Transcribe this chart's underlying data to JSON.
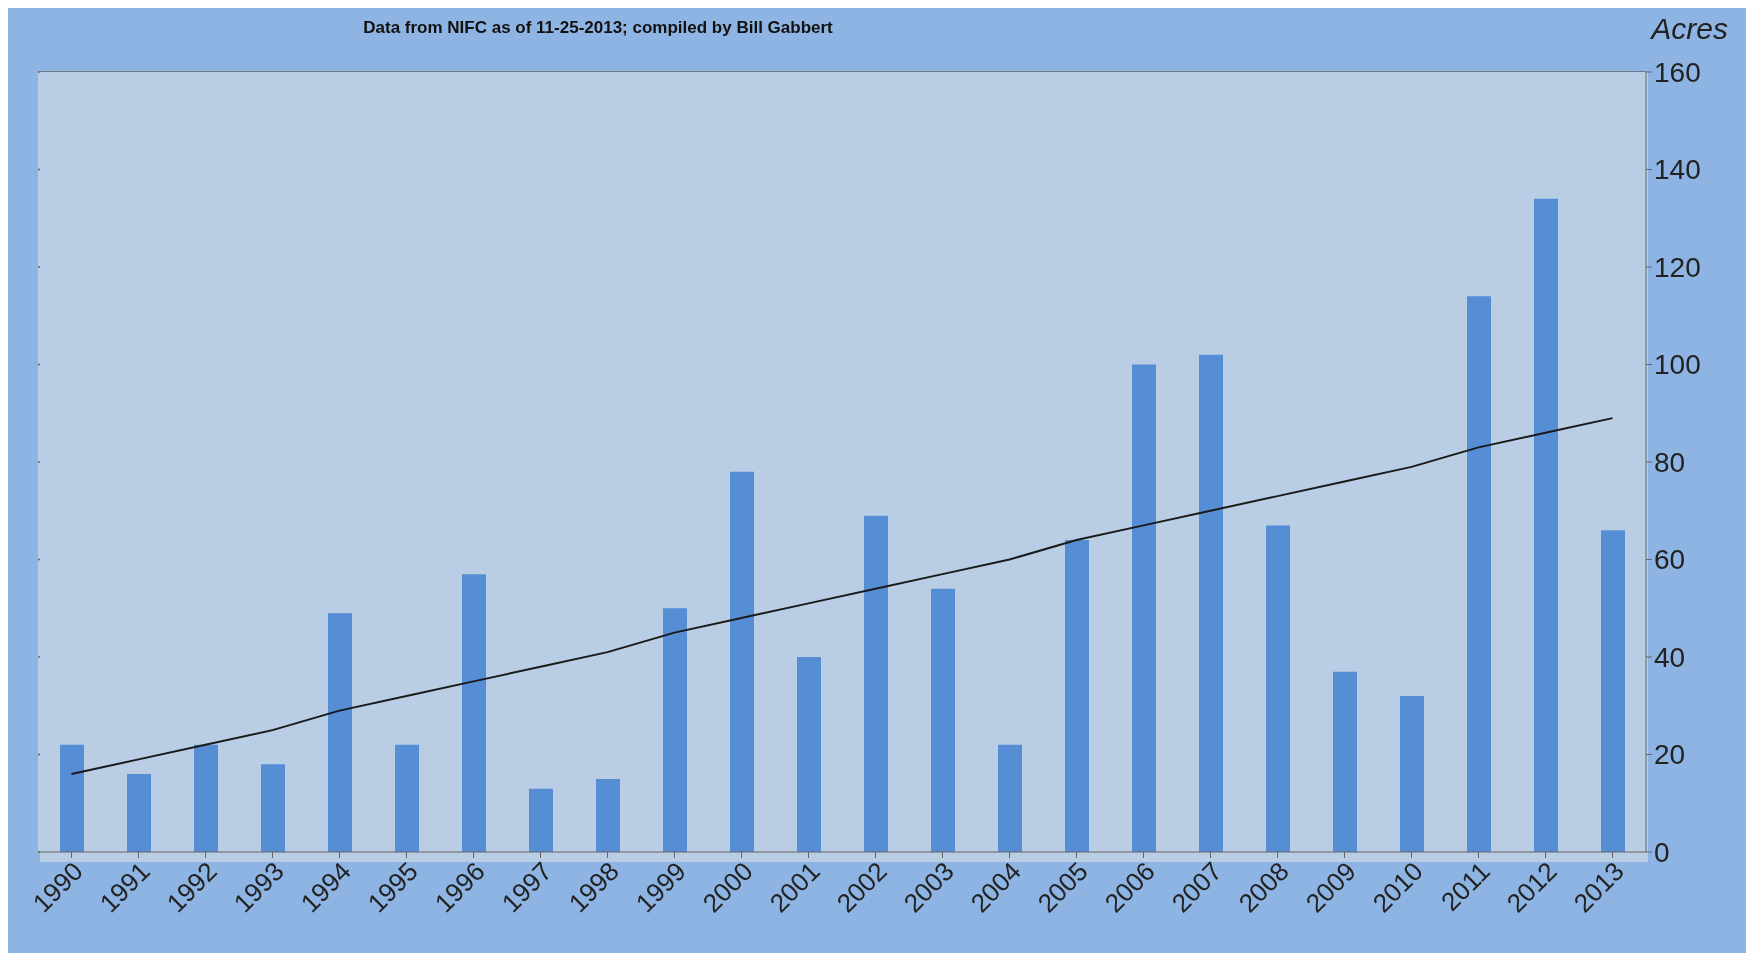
{
  "chart_data": {
    "type": "bar",
    "subtitle": "Data from NIFC as of 11-25-2013;   compiled  by Bill Gabbert",
    "ylabel": "Acres",
    "categories": [
      "1990",
      "1991",
      "1992",
      "1993",
      "1994",
      "1995",
      "1996",
      "1997",
      "1998",
      "1999",
      "2000",
      "2001",
      "2002",
      "2003",
      "2004",
      "2005",
      "2006",
      "2007",
      "2008",
      "2009",
      "2010",
      "2011",
      "2012",
      "2013"
    ],
    "series": [
      {
        "color": "#558ed5",
        "values": [
          22,
          16,
          22,
          18,
          49,
          22,
          57,
          13,
          15,
          50,
          78,
          40,
          69,
          54,
          22,
          64,
          100,
          102,
          67,
          37,
          32,
          114,
          134,
          66
        ]
      },
      {
        "type": "line",
        "color": "#1a1a1a",
        "values": [
          16,
          19,
          22,
          25,
          29,
          32,
          35,
          38,
          41,
          45,
          48,
          51,
          54,
          57,
          60,
          64,
          67,
          70,
          73,
          76,
          79,
          83,
          86,
          89
        ]
      }
    ],
    "ylim": [
      0,
      160
    ],
    "yticks": [
      0,
      20,
      40,
      60,
      80,
      100,
      120,
      140,
      160
    ],
    "grid": "y",
    "legend": false
  }
}
